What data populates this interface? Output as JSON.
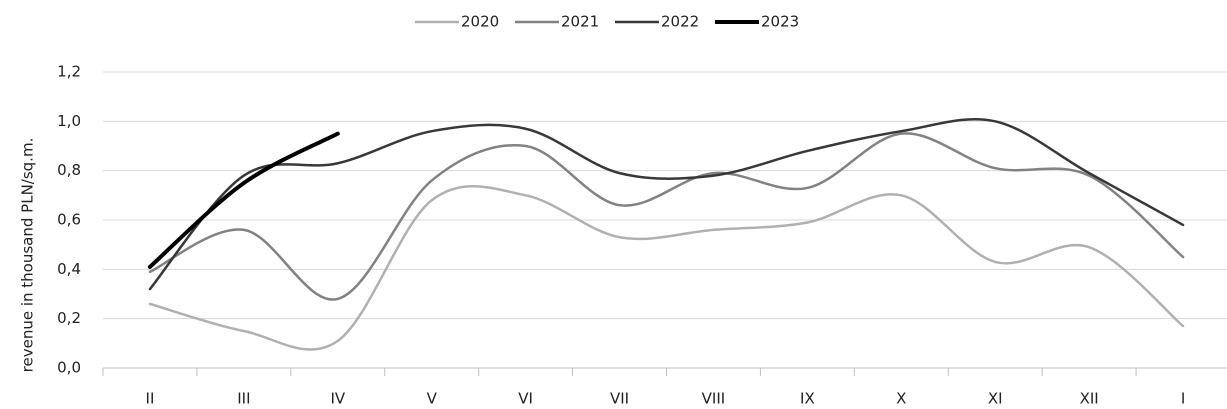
{
  "chart_data": {
    "type": "line",
    "y_label": "revenue in thousand PLN/sq.m.",
    "categories": [
      "II",
      "III",
      "IV",
      "V",
      "VI",
      "VII",
      "VIII",
      "IX",
      "X",
      "XI",
      "XII",
      "I"
    ],
    "series": [
      {
        "name": "2020",
        "color": "#b0b0b0",
        "linewidth": 2.5,
        "values": [
          0.26,
          0.15,
          0.11,
          0.68,
          0.7,
          0.53,
          0.56,
          0.59,
          0.7,
          0.43,
          0.49,
          0.17
        ]
      },
      {
        "name": "2021",
        "color": "#828282",
        "linewidth": 2.5,
        "values": [
          0.39,
          0.56,
          0.28,
          0.76,
          0.9,
          0.66,
          0.79,
          0.73,
          0.95,
          0.81,
          0.78,
          0.45
        ]
      },
      {
        "name": "2022",
        "color": "#383838",
        "linewidth": 2.5,
        "values": [
          0.32,
          0.78,
          0.83,
          0.96,
          0.97,
          0.79,
          0.78,
          0.88,
          0.96,
          1.0,
          0.79,
          0.58
        ]
      },
      {
        "name": "2023",
        "color": "#000000",
        "linewidth": 4,
        "values": [
          0.41,
          0.75,
          0.95,
          null,
          null,
          null,
          null,
          null,
          null,
          null,
          null,
          null
        ]
      }
    ],
    "ylim": [
      0,
      1.2
    ],
    "yticks": [
      {
        "value": 0,
        "label": "0,0"
      },
      {
        "value": 0.2,
        "label": "0,2"
      },
      {
        "value": 0.4,
        "label": "0,4"
      },
      {
        "value": 0.6,
        "label": "0,6"
      },
      {
        "value": 0.8,
        "label": "0,8"
      },
      {
        "value": 1.0,
        "label": "1,0"
      },
      {
        "value": 1.2,
        "label": "1,2"
      }
    ],
    "grid": true,
    "smooth": true,
    "legend": "top"
  }
}
